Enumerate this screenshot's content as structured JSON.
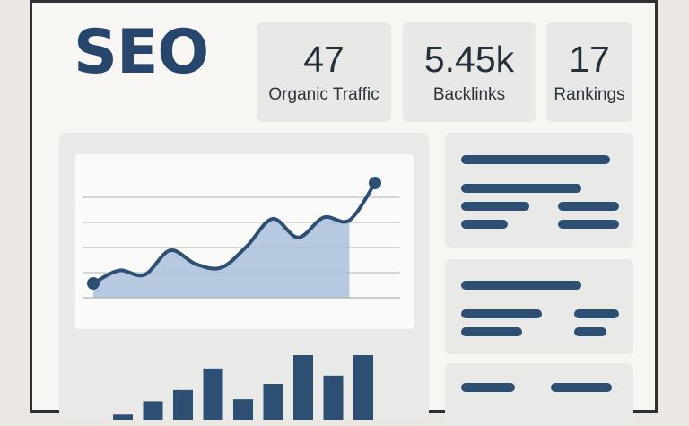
{
  "title": "SEO",
  "kpis": [
    {
      "value": "47",
      "label": "Organic Traffic"
    },
    {
      "value": "5.45k",
      "label": "Backlinks"
    },
    {
      "value": "17",
      "label": "Rankings"
    }
  ],
  "colors": {
    "accent": "#2d4f73",
    "area_fill": "#a9bfdc",
    "card_bg": "#e9e9e7",
    "text_dark": "#26303b"
  },
  "chart_data": [
    {
      "type": "area",
      "x": [
        1,
        2,
        3,
        4,
        5,
        6,
        7,
        8,
        9,
        10,
        11,
        12
      ],
      "values": [
        20,
        38,
        32,
        66,
        47,
        42,
        72,
        110,
        84,
        112,
        108,
        160
      ],
      "ylim": [
        0,
        175
      ],
      "grid": true
    },
    {
      "type": "bar",
      "values": [
        5,
        18,
        29,
        50,
        20,
        35,
        63,
        43,
        63
      ],
      "ylim": [
        0,
        70
      ]
    }
  ]
}
